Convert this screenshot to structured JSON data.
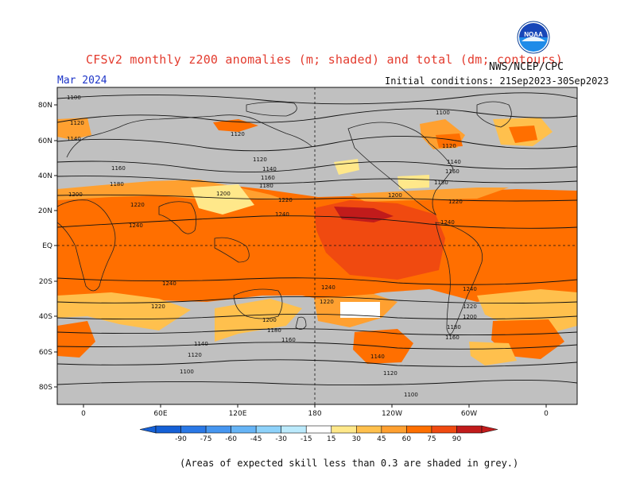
{
  "header": {
    "title": "CFSv2 monthly z200 anomalies (m; shaded) and total (dm; contours)",
    "agency": "NWS/NCEP/CPC",
    "month": "Mar 2024",
    "initial_conditions": "Initial conditions: 21Sep2023-30Sep2023",
    "logo_text": "NOAA"
  },
  "footer": {
    "note": "(Areas of expected skill less than 0.3 are shaded in grey.)"
  },
  "map": {
    "lat_labels": [
      "80N",
      "60N",
      "40N",
      "20N",
      "EQ",
      "20S",
      "40S",
      "60S",
      "80S"
    ],
    "lon_labels": [
      "0",
      "60E",
      "120E",
      "180",
      "120W",
      "60W",
      "0"
    ],
    "colors": {
      "skill_grey": "#c0c0c0",
      "c15": "#ffe88a",
      "c30": "#ffc04d",
      "c45": "#ffa030",
      "c60": "#ff6f00",
      "c75": "#f04a10",
      "c90": "#c11b1b"
    },
    "contour_labels": [
      "1100",
      "1120",
      "1140",
      "1160",
      "1180",
      "1200",
      "1220",
      "1240"
    ]
  },
  "colorbar": {
    "ticks": [
      "-90",
      "-75",
      "-60",
      "-45",
      "-30",
      "-15",
      "15",
      "30",
      "45",
      "60",
      "75",
      "90"
    ],
    "colors": [
      "#1560d6",
      "#2a78e6",
      "#4696f0",
      "#66b4f6",
      "#8ed2fa",
      "#bbeafc",
      "#ffffff",
      "#ffe88a",
      "#ffc04d",
      "#ffa030",
      "#ff6f00",
      "#f04a10",
      "#c11b1b"
    ]
  }
}
